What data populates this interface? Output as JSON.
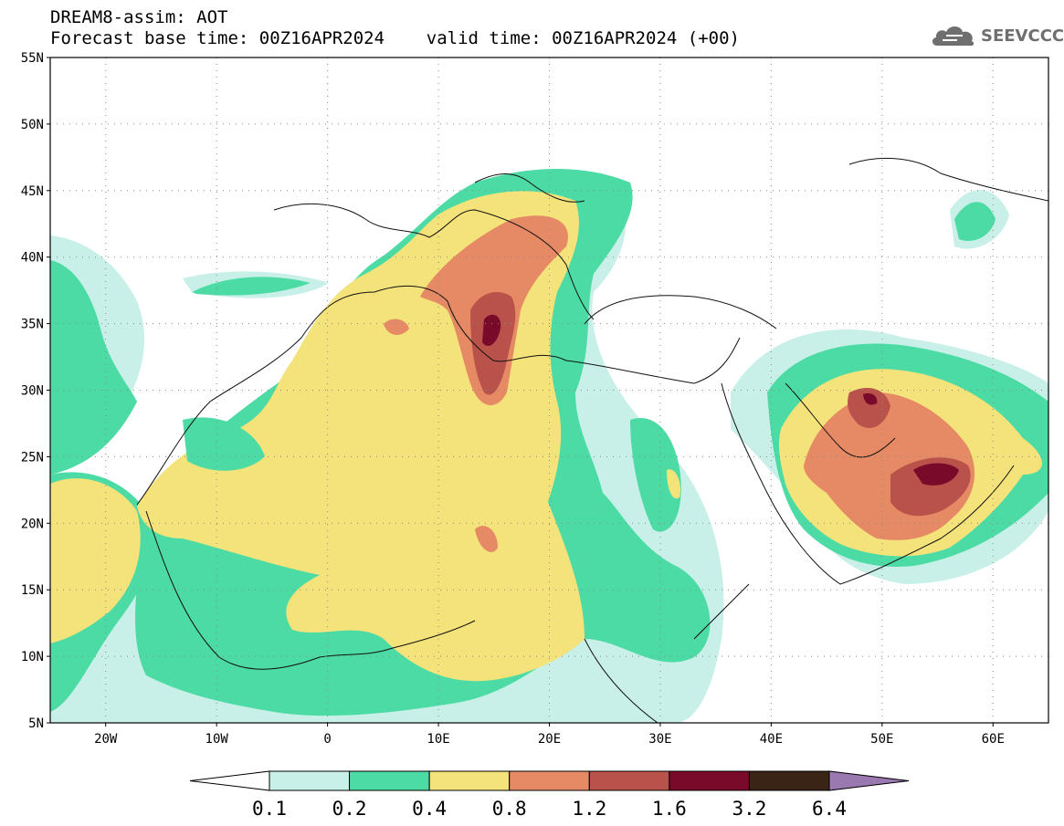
{
  "title": {
    "line1": "DREAM8-assim: AOT",
    "line2": "Forecast base time: 00Z16APR2024    valid time: 00Z16APR2024 (+00)"
  },
  "logo": {
    "text": "SEEVCCC",
    "icon": "cloud-icon"
  },
  "map": {
    "lat_labels": [
      "55N",
      "50N",
      "45N",
      "40N",
      "35N",
      "30N",
      "25N",
      "20N",
      "15N",
      "10N",
      "5N"
    ],
    "lon_labels": [
      "20W",
      "10W",
      "0",
      "10E",
      "20E",
      "30E",
      "40E",
      "50E",
      "60E"
    ],
    "lat_range": [
      5,
      55
    ],
    "lon_range": [
      -25,
      65
    ],
    "grid": "dotted"
  },
  "legend": {
    "levels": [
      "0.1",
      "0.2",
      "0.4",
      "0.8",
      "1.2",
      "1.6",
      "3.2",
      "6.4"
    ],
    "colors": [
      "#ffffff",
      "#c8f0e8",
      "#4ddba5",
      "#f4e27a",
      "#e58a64",
      "#b8524a",
      "#7a0a2a",
      "#3a2416",
      "#9a78b0"
    ]
  }
}
